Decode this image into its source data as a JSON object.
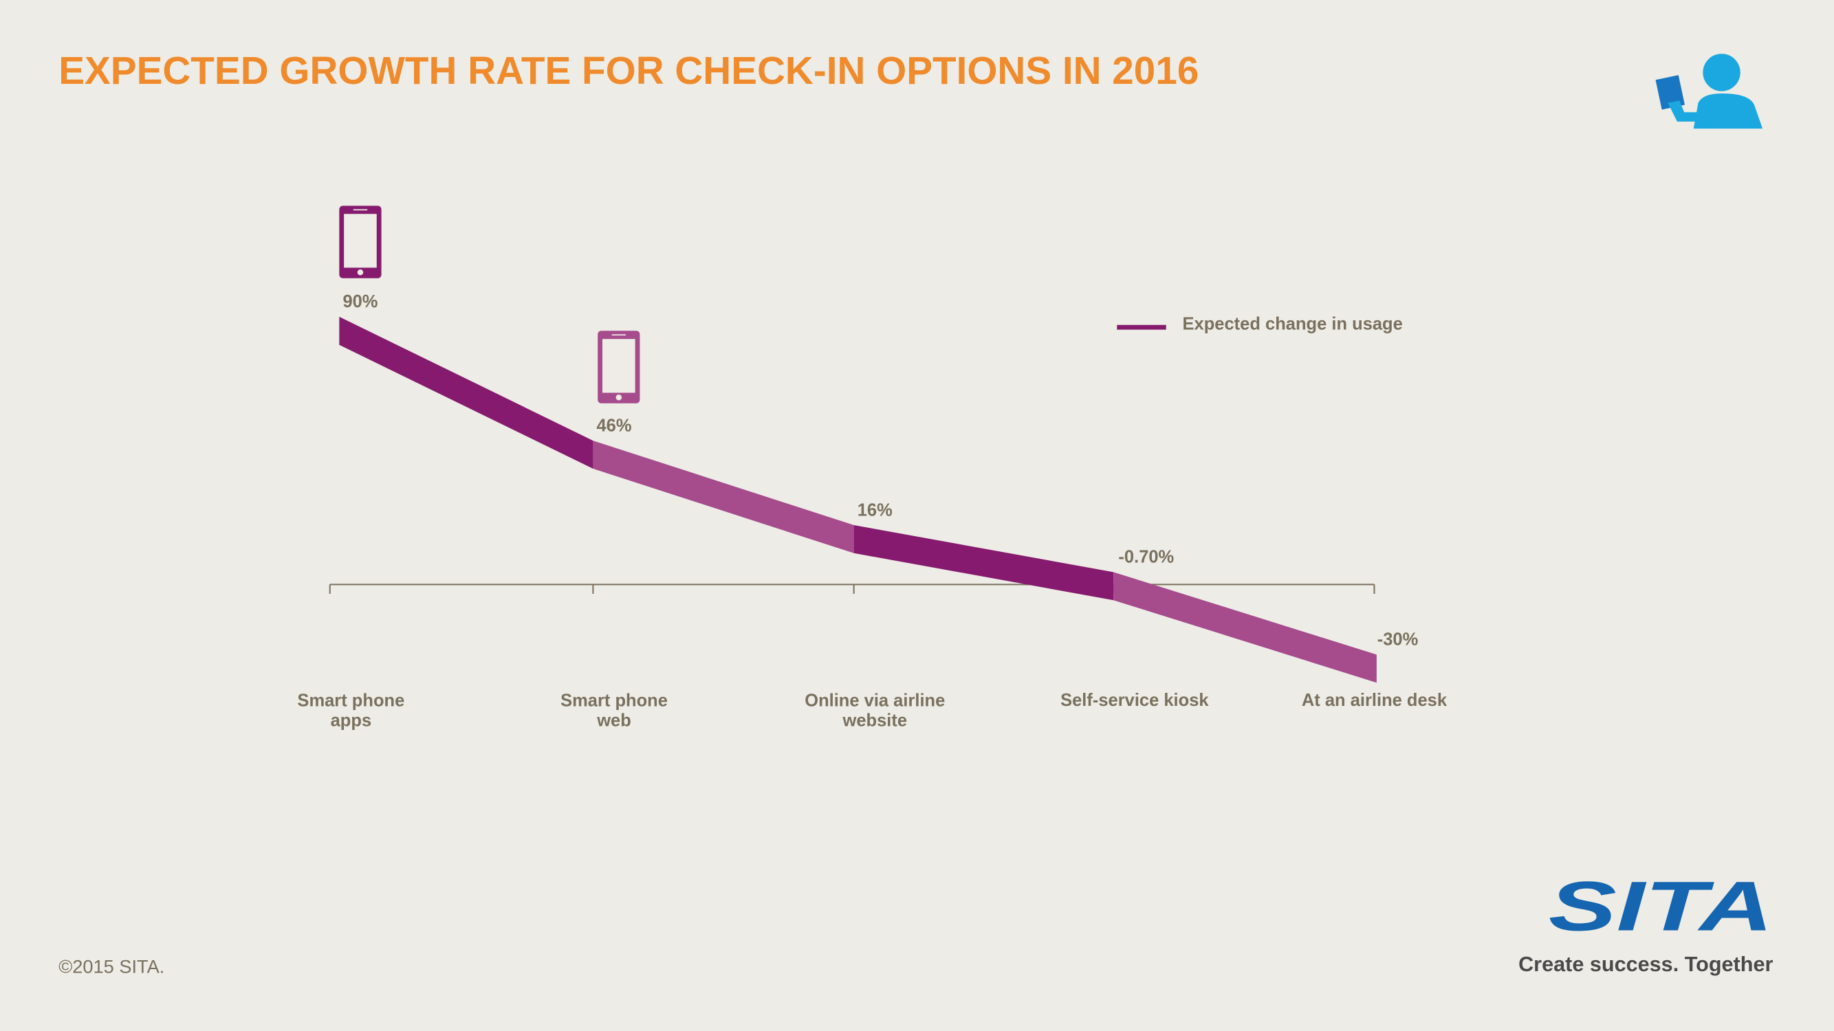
{
  "chart_data": {
    "type": "line",
    "title": "EXPECTED GROWTH RATE FOR CHECK-IN OPTIONS IN 2016",
    "categories": [
      "Smart phone apps",
      "Smart phone web",
      "Online via airline website",
      "Self-service kiosk",
      "At an airline desk"
    ],
    "series": [
      {
        "name": "Expected change in usage",
        "color": "#861a6e",
        "alt_color": "#a64b8c",
        "values": [
          90,
          46,
          16,
          -0.7,
          -30
        ],
        "value_labels": [
          "90%",
          "46%",
          "16%",
          "-0.70%",
          "-30%"
        ]
      }
    ],
    "ylim": [
      -30,
      90
    ],
    "copyright": "©2015 SITA.",
    "logo": "SITA",
    "tagline": "Create success. Together"
  }
}
